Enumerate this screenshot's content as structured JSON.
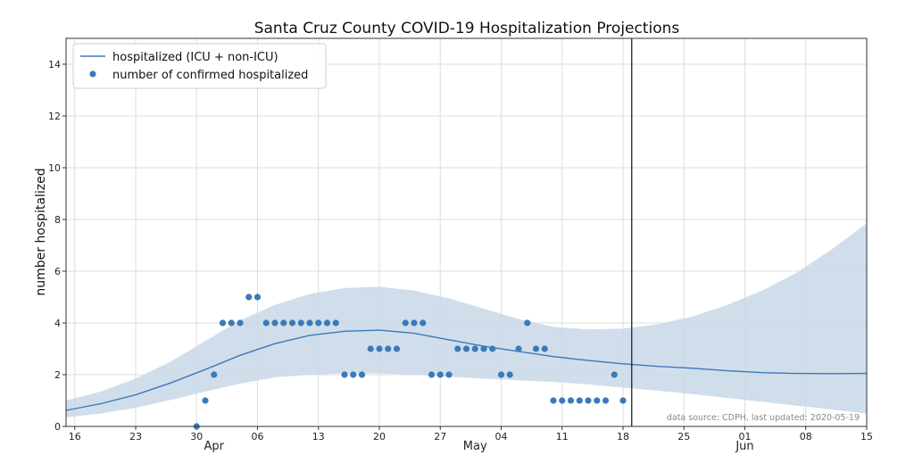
{
  "chart_data": {
    "type": "line",
    "title": "Santa Cruz County COVID-19 Hospitalization Projections",
    "ylabel": "number hospitalized",
    "xlabel": "",
    "ylim": [
      0,
      15
    ],
    "xlim": [
      "2020-03-15",
      "2020-06-15"
    ],
    "grid": true,
    "legend_position": "top-left",
    "y_ticks": [
      "0",
      "2",
      "4",
      "6",
      "8",
      "10",
      "12",
      "14"
    ],
    "x_ticks": [
      {
        "date": "2020-03-16",
        "label": "16"
      },
      {
        "date": "2020-03-23",
        "label": "23"
      },
      {
        "date": "2020-03-30",
        "label": "30"
      },
      {
        "date": "2020-04-06",
        "label": "06"
      },
      {
        "date": "2020-04-13",
        "label": "13"
      },
      {
        "date": "2020-04-20",
        "label": "20"
      },
      {
        "date": "2020-04-27",
        "label": "27"
      },
      {
        "date": "2020-05-04",
        "label": "04"
      },
      {
        "date": "2020-05-11",
        "label": "11"
      },
      {
        "date": "2020-05-18",
        "label": "18"
      },
      {
        "date": "2020-05-25",
        "label": "25"
      },
      {
        "date": "2020-06-01",
        "label": "01"
      },
      {
        "date": "2020-06-08",
        "label": "08"
      },
      {
        "date": "2020-06-15",
        "label": "15"
      }
    ],
    "month_labels": [
      {
        "date": "2020-04-01",
        "label": "Apr"
      },
      {
        "date": "2020-05-01",
        "label": "May"
      },
      {
        "date": "2020-06-01",
        "label": "Jun"
      }
    ],
    "vline_date": "2020-05-19",
    "annotation": "data source: CDPH, last updated: 2020-05-19",
    "series": [
      {
        "name": "hospitalized (ICU + non-ICU)",
        "kind": "line",
        "x": [
          "2020-03-15",
          "2020-03-19",
          "2020-03-23",
          "2020-03-27",
          "2020-03-31",
          "2020-04-04",
          "2020-04-08",
          "2020-04-12",
          "2020-04-16",
          "2020-04-20",
          "2020-04-24",
          "2020-04-28",
          "2020-05-02",
          "2020-05-06",
          "2020-05-10",
          "2020-05-14",
          "2020-05-18",
          "2020-05-22",
          "2020-05-26",
          "2020-05-30",
          "2020-06-03",
          "2020-06-07",
          "2020-06-11",
          "2020-06-15"
        ],
        "y": [
          0.62,
          0.88,
          1.22,
          1.68,
          2.2,
          2.75,
          3.2,
          3.52,
          3.68,
          3.72,
          3.6,
          3.35,
          3.1,
          2.9,
          2.7,
          2.55,
          2.42,
          2.32,
          2.25,
          2.15,
          2.08,
          2.05,
          2.04,
          2.05
        ],
        "lower": [
          0.35,
          0.5,
          0.72,
          1.02,
          1.35,
          1.65,
          1.9,
          2.0,
          2.05,
          2.05,
          2.0,
          1.92,
          1.85,
          1.78,
          1.72,
          1.62,
          1.5,
          1.38,
          1.25,
          1.1,
          0.95,
          0.8,
          0.65,
          0.5
        ],
        "upper": [
          1.0,
          1.35,
          1.85,
          2.5,
          3.3,
          4.1,
          4.7,
          5.12,
          5.35,
          5.4,
          5.25,
          4.95,
          4.55,
          4.15,
          3.85,
          3.75,
          3.78,
          3.95,
          4.25,
          4.7,
          5.25,
          5.95,
          6.85,
          7.85
        ],
        "color": "#3a7ab8",
        "band_color": "#c8d8e8"
      },
      {
        "name": "number of confirmed hospitalized",
        "kind": "scatter",
        "color": "#3a7ab8",
        "x": [
          "2020-03-30",
          "2020-03-31",
          "2020-04-01",
          "2020-04-02",
          "2020-04-03",
          "2020-04-04",
          "2020-04-05",
          "2020-04-06",
          "2020-04-07",
          "2020-04-08",
          "2020-04-09",
          "2020-04-10",
          "2020-04-11",
          "2020-04-12",
          "2020-04-13",
          "2020-04-14",
          "2020-04-15",
          "2020-04-16",
          "2020-04-17",
          "2020-04-18",
          "2020-04-19",
          "2020-04-20",
          "2020-04-21",
          "2020-04-22",
          "2020-04-23",
          "2020-04-24",
          "2020-04-25",
          "2020-04-26",
          "2020-04-27",
          "2020-04-28",
          "2020-04-29",
          "2020-04-30",
          "2020-05-01",
          "2020-05-02",
          "2020-05-03",
          "2020-05-04",
          "2020-05-05",
          "2020-05-06",
          "2020-05-07",
          "2020-05-08",
          "2020-05-09",
          "2020-05-10",
          "2020-05-11",
          "2020-05-12",
          "2020-05-13",
          "2020-05-14",
          "2020-05-15",
          "2020-05-16",
          "2020-05-17",
          "2020-05-18"
        ],
        "y": [
          0,
          1,
          2,
          4,
          4,
          4,
          5,
          5,
          4,
          4,
          4,
          4,
          4,
          4,
          4,
          4,
          4,
          2,
          2,
          2,
          3,
          3,
          3,
          3,
          4,
          4,
          4,
          2,
          2,
          2,
          3,
          3,
          3,
          3,
          3,
          2,
          2,
          3,
          4,
          3,
          3,
          1,
          1,
          1,
          1,
          1,
          1,
          1,
          2,
          1
        ]
      }
    ]
  }
}
